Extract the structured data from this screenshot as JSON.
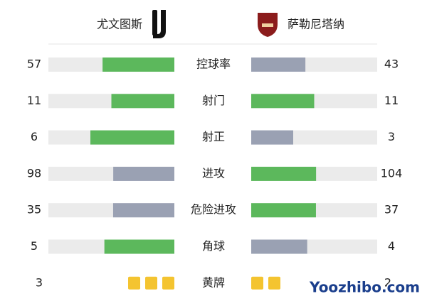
{
  "header": {
    "home": "尤文图斯",
    "away": "萨勒尼塔纳"
  },
  "stats": [
    {
      "label": "控球率",
      "home": 57,
      "away": 43
    },
    {
      "label": "射门",
      "home": 11,
      "away": 11
    },
    {
      "label": "射正",
      "home": 6,
      "away": 3
    },
    {
      "label": "进攻",
      "home": 98,
      "away": 104
    },
    {
      "label": "危险进攻",
      "home": 35,
      "away": 37
    },
    {
      "label": "角球",
      "home": 5,
      "away": 4
    }
  ],
  "cards": {
    "label": "黄牌",
    "home": 3,
    "away": 2
  },
  "watermark": "Yoozhibo.com",
  "colors": {
    "lead": "#5cb85c",
    "trail": "#9aa1b3",
    "track": "#ebebeb",
    "card": "#f4c430"
  }
}
